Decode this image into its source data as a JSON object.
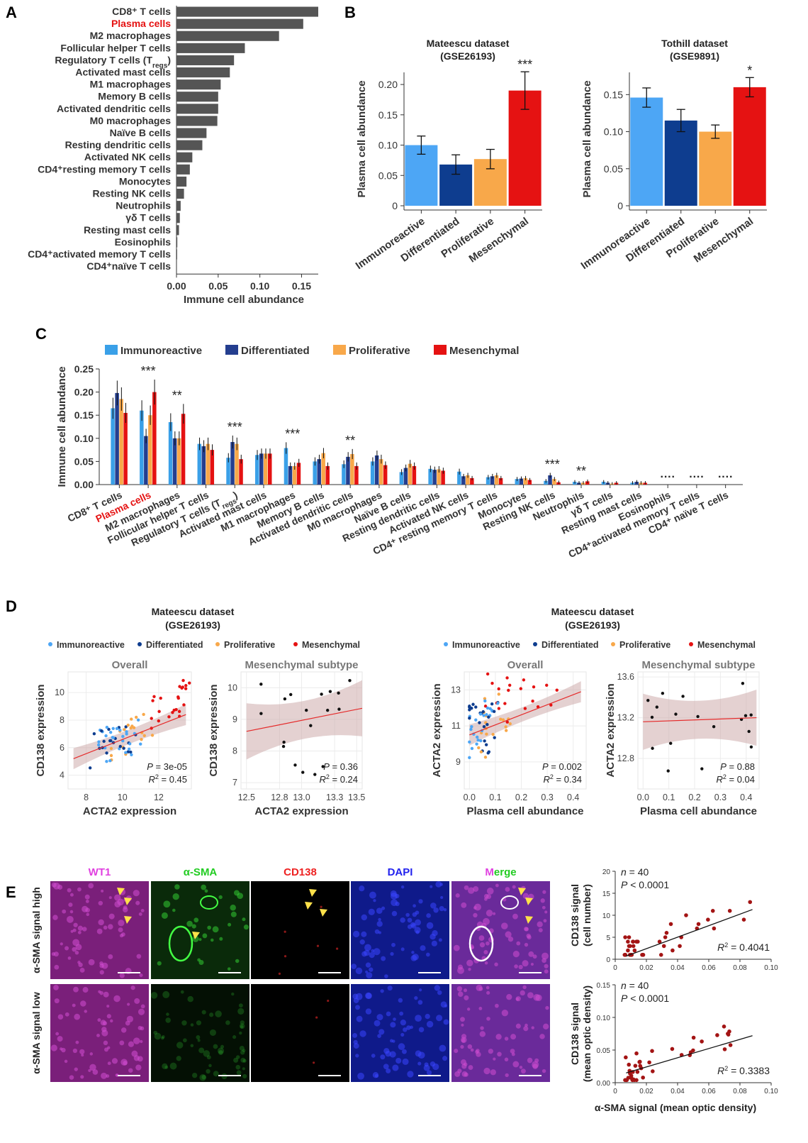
{
  "panels": {
    "A": "A",
    "B": "B",
    "C": "C",
    "D": "D",
    "E": "E"
  },
  "chart_data": [
    {
      "id": "A",
      "type": "bar",
      "orientation": "horizontal",
      "categories": [
        "CD8⁺ T cells",
        "Plasma cells",
        "M2 macrophages",
        "Follicular helper T cells",
        "Regulatory T cells (Tregs)",
        "Activated mast cells",
        "M1 macrophages",
        "Memory B cells",
        "Activated dendritic cells",
        "M0 macrophages",
        "Naïve B cells",
        "Resting dendritic cells",
        "Activated NK cells",
        "CD4⁺resting memory T cells",
        "Monocytes",
        "Resting NK cells",
        "Neutrophils",
        "γδ T cells",
        "Resting mast cells",
        "Eosinophils",
        "CD4⁺activated memory T cells",
        "CD4⁺naïve T cells"
      ],
      "highlight": [
        "Plasma cells"
      ],
      "values": [
        0.17,
        0.152,
        0.123,
        0.082,
        0.069,
        0.064,
        0.053,
        0.05,
        0.05,
        0.049,
        0.036,
        0.031,
        0.019,
        0.016,
        0.012,
        0.009,
        0.005,
        0.004,
        0.003,
        0.001,
        0.0008,
        0.0005
      ],
      "xlabel": "Immune cell abundance",
      "xlim": [
        0,
        0.17
      ],
      "xticks": [
        "0.00",
        "0.05",
        "0.10",
        "0.15"
      ],
      "color": "#555555"
    },
    {
      "id": "B1",
      "type": "bar",
      "title": "Mateescu dataset",
      "subtitle": "(GSE26193)",
      "categories": [
        "Immunoreactive",
        "Differentiated",
        "Proliferative",
        "Mesenchymal"
      ],
      "values": [
        0.1,
        0.068,
        0.077,
        0.19
      ],
      "errors": [
        0.015,
        0.016,
        0.016,
        0.031
      ],
      "sig": [
        "",
        "",
        "",
        "***"
      ],
      "ylabel": "Plasma cell abundance",
      "ylim": [
        0,
        0.22
      ],
      "yticks": [
        "0",
        "0.05",
        "0.10",
        "0.15",
        "0.20"
      ],
      "colors": [
        "#4da6f5",
        "#0e3d8f",
        "#f8a84a",
        "#e51212"
      ]
    },
    {
      "id": "B2",
      "type": "bar",
      "title": "Tothill dataset",
      "subtitle": "(GSE9891)",
      "categories": [
        "Immunoreactive",
        "Differentiated",
        "Proliferative",
        "Mesenchymal"
      ],
      "values": [
        0.146,
        0.115,
        0.1,
        0.16
      ],
      "errors": [
        0.013,
        0.015,
        0.009,
        0.013
      ],
      "sig": [
        "",
        "",
        "",
        "*"
      ],
      "ylabel": "Plasma cell abundance",
      "ylim": [
        0,
        0.18
      ],
      "yticks": [
        "0",
        "0.05",
        "0.10",
        "0.15"
      ],
      "colors": [
        "#4da6f5",
        "#0e3d8f",
        "#f8a84a",
        "#e51212"
      ]
    },
    {
      "id": "C",
      "type": "bar",
      "grouped": true,
      "categories": [
        "CD8⁺ T cells",
        "Plasma cells",
        "M2 macrophages",
        "Follicular helper T cells",
        "Regulatory T cells (Tregs)",
        "Activated mast cells",
        "M1 macrophages",
        "Memory B cells",
        "Activated dendritic cells",
        "M0 macrophages",
        "Naïve B cells",
        "Resting dendritic cells",
        "Activated NK cells",
        "CD4⁺ resting memory T cells",
        "Monocytes",
        "Resting NK cells",
        "Neutrophils",
        "γδ T cells",
        "Resting mast cells",
        "Eosinophils",
        "CD4⁺activated memory T cells",
        "CD4⁺ naïve T cells"
      ],
      "highlight": [
        "Plasma cells"
      ],
      "series": [
        {
          "name": "Immunoreactive",
          "color": "#3aa0e8",
          "values": [
            0.165,
            0.16,
            0.135,
            0.088,
            0.058,
            0.064,
            0.079,
            0.05,
            0.044,
            0.05,
            0.027,
            0.034,
            0.028,
            0.016,
            0.012,
            0.008,
            0.006,
            0.006,
            0.004,
            0,
            0,
            0
          ]
        },
        {
          "name": "Differentiated",
          "color": "#243e8f",
          "values": [
            0.198,
            0.105,
            0.1,
            0.083,
            0.092,
            0.067,
            0.04,
            0.055,
            0.06,
            0.063,
            0.036,
            0.032,
            0.018,
            0.018,
            0.013,
            0.02,
            0.004,
            0.004,
            0.006,
            0,
            0,
            0
          ]
        },
        {
          "name": "Proliferative",
          "color": "#f8a84a",
          "values": [
            0.185,
            0.15,
            0.1,
            0.088,
            0.088,
            0.067,
            0.04,
            0.068,
            0.066,
            0.055,
            0.045,
            0.033,
            0.02,
            0.02,
            0.014,
            0.012,
            0.004,
            0.002,
            0.004,
            0,
            0,
            0
          ]
        },
        {
          "name": "Mesenchymal",
          "color": "#e51212",
          "values": [
            0.155,
            0.2,
            0.153,
            0.075,
            0.055,
            0.067,
            0.047,
            0.04,
            0.04,
            0.042,
            0.04,
            0.03,
            0.014,
            0.014,
            0.01,
            0.005,
            0.007,
            0.004,
            0.004,
            0,
            0,
            0
          ]
        }
      ],
      "sig": [
        "",
        "***",
        "**",
        "",
        "***",
        "",
        "***",
        "",
        "**",
        "",
        "",
        "",
        "",
        "",
        "",
        "***",
        "**",
        "",
        "",
        "····",
        "····",
        "····"
      ],
      "ylabel": "Immune cell abundance",
      "ylim": [
        0,
        0.25
      ],
      "yticks": [
        "0.00",
        "0.05",
        "0.10",
        "0.15",
        "0.20",
        "0.25"
      ]
    },
    {
      "id": "D1",
      "type": "scatter",
      "title": "Overall",
      "xlabel": "ACTA2 expression",
      "ylabel": "CD138 expression",
      "xlim": [
        7,
        13.8
      ],
      "ylim": [
        3,
        11.5
      ],
      "xticks": [
        "8",
        "10",
        "12"
      ],
      "yticks": [
        "4",
        "6",
        "8",
        "10"
      ],
      "stats": {
        "p": "3e-05",
        "r2": "0.45"
      },
      "fit": [
        [
          7.3,
          5.2
        ],
        [
          13.5,
          8.4
        ]
      ],
      "subtype_colored": true
    },
    {
      "id": "D2",
      "type": "scatter",
      "title": "Mesenchymal subtype",
      "xlabel": "ACTA2 expression",
      "ylabel": "CD138 expression",
      "xlim": [
        12.45,
        13.55
      ],
      "ylim": [
        6.8,
        10.5
      ],
      "xticks": [
        "12.5",
        "12.8",
        "13.0",
        "13.3",
        "13.5"
      ],
      "yticks": [
        "7",
        "8",
        "9",
        "10"
      ],
      "stats": {
        "p": "0.36",
        "r2": "0.24"
      },
      "fit": [
        [
          12.5,
          8.62
        ],
        [
          13.55,
          9.35
        ]
      ]
    },
    {
      "id": "D3",
      "type": "scatter",
      "title": "Overall",
      "xlabel": "Plasma cell abundance",
      "ylabel": "ACTA2 expression",
      "xlim": [
        -0.02,
        0.45
      ],
      "ylim": [
        7.5,
        14
      ],
      "xticks": [
        "0.0",
        "0.1",
        "0.2",
        "0.3",
        "0.4"
      ],
      "yticks": [
        "9",
        "11",
        "13"
      ],
      "stats": {
        "p": "0.002",
        "r2": "0.34"
      },
      "fit": [
        [
          0,
          10.5
        ],
        [
          0.43,
          12.9
        ]
      ],
      "subtype_colored": true
    },
    {
      "id": "D4",
      "type": "scatter",
      "title": "Mesenchymal subtype",
      "xlabel": "Plasma cell abundance",
      "ylabel": "ACTA2 expression",
      "xlim": [
        -0.02,
        0.45
      ],
      "ylim": [
        12.5,
        13.65
      ],
      "xticks": [
        "0.0",
        "0.1",
        "0.2",
        "0.3",
        "0.4"
      ],
      "yticks": [
        "12.8",
        "13.2",
        "13.6"
      ],
      "stats": {
        "p": "0.88",
        "r2": "0.04"
      },
      "fit": [
        [
          0,
          13.16
        ],
        [
          0.44,
          13.2
        ]
      ]
    },
    {
      "id": "E1",
      "type": "scatter",
      "ylabel1": "CD138 signal",
      "ylabel2": "(cell number)",
      "xlim": [
        0,
        0.1
      ],
      "ylim": [
        0,
        20
      ],
      "xticks": [
        "0",
        "0.02",
        "0.04",
        "0.06",
        "0.08",
        "0.10"
      ],
      "yticks": [
        "0",
        "5",
        "10",
        "15",
        "20"
      ],
      "stats": {
        "n": "40",
        "p": "0.0001",
        "r2": "0.4041"
      },
      "fit": [
        [
          0.007,
          0.7
        ],
        [
          0.088,
          11.3
        ]
      ]
    },
    {
      "id": "E2",
      "type": "scatter",
      "ylabel1": "CD138 signal",
      "ylabel2": "(mean optic density)",
      "xlabel": "α-SMA signal (mean optic density)",
      "xlim": [
        0,
        0.1
      ],
      "ylim": [
        0,
        0.15
      ],
      "xticks": [
        "0",
        "0.02",
        "0.04",
        "0.06",
        "0.08",
        "0.10"
      ],
      "yticks": [
        "0.00",
        "0.05",
        "0.10",
        "0.15"
      ],
      "stats": {
        "n": "40",
        "p": "0.0001",
        "r2": "0.3383"
      },
      "fit": [
        [
          0.007,
          0.015
        ],
        [
          0.088,
          0.072
        ]
      ]
    }
  ],
  "d_headers": {
    "dataset": "Mateescu dataset",
    "gse": "(GSE26193)"
  },
  "subtypes": [
    {
      "name": "Immunoreactive",
      "color": "#4da6f5"
    },
    {
      "name": "Differentiated",
      "color": "#0e3d8f"
    },
    {
      "name": "Proliferative",
      "color": "#f8a84a"
    },
    {
      "name": "Mesenchymal",
      "color": "#e51212"
    }
  ],
  "micro": {
    "channels": [
      {
        "name": "WT1",
        "color": "#e040e0"
      },
      {
        "name": "α-SMA",
        "color": "#22cc22"
      },
      {
        "name": "CD138",
        "color": "#ee2222"
      },
      {
        "name": "DAPI",
        "color": "#2222ee"
      },
      {
        "name": "Merge",
        "colors": [
          "#e040e0",
          "#22cc22"
        ]
      }
    ],
    "rows": [
      "α-SMA signal high",
      "α-SMA signal low"
    ]
  }
}
